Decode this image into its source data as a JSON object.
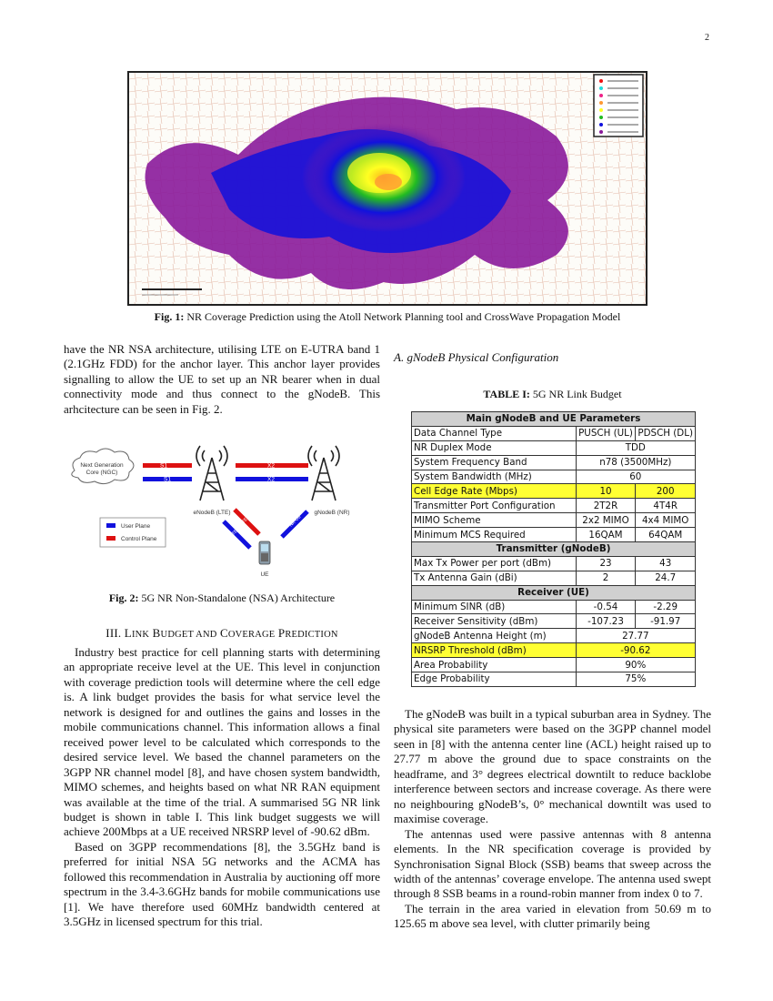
{
  "page_number": "2",
  "figure1": {
    "label": "Fig. 1:",
    "caption": "NR Coverage Prediction using the Atoll Network Planning tool and CrossWave Propagation Model",
    "legend_colors": [
      "#ee1111",
      "#22dddd",
      "#ee2288",
      "#ff9933",
      "#ffff22",
      "#22bb22",
      "#1111dd",
      "#8a1a9a"
    ]
  },
  "left_col": {
    "para1": "have the NR NSA architecture, utilising LTE on E-UTRA band 1 (2.1GHz FDD) for the anchor layer. This anchor layer provides signalling to allow the UE to set up an NR bearer when in dual connectivity mode and thus connect to the gNodeB. This arhcitecture can be seen in Fig. 2.",
    "section_num": "III.",
    "section_title_L": "L",
    "section_title_1": "INK",
    "section_title_B": "B",
    "section_title_2": "UDGET AND",
    "section_title_C": "C",
    "section_title_3": "OVERAGE",
    "section_title_P": "P",
    "section_title_4": "REDICTION",
    "para2": "Industry best practice for cell planning starts with determining an appropriate receive level at the UE. This level in conjunction with coverage prediction tools will determine where the cell edge is. A link budget provides the basis for what service level the network is designed for and outlines the gains and losses in the mobile communications channel. This information allows a final received power level to be calculated which corresponds to the desired service level. We based the channel parameters on the 3GPP NR channel model [8], and have chosen system bandwidth, MIMO schemes, and heights based on what NR RAN equipment was available at the time of the trial. A summarised 5G NR link budget is shown in table I. This link budget suggests we will achieve 200Mbps at a UE received NRSRP level of -90.62 dBm.",
    "para3": "Based on 3GPP recommendations [8], the 3.5GHz band is preferred for initial NSA 5G networks and the ACMA has followed this recommendation in Australia by auctioning off more spectrum in the 3.4-3.6GHz bands for mobile communications use [1]. We have therefore used 60MHz bandwidth centered at 3.5GHz in licensed spectrum for this trial."
  },
  "figure2": {
    "label": "Fig. 2:",
    "caption": "5G NR Non-Standalone (NSA) Architecture",
    "core_line1": "Next Generation",
    "core_line2": "Core (NGC)",
    "s1_mme": "S1",
    "s1_mme_sub": "MME",
    "s1_u": "S1",
    "s1_u_sub": "U",
    "x2_c": "X2",
    "x2_c_sub": "C",
    "x2_u": "X2",
    "x2_u_sub": "U",
    "enodeb": "eNodeB (LTE)",
    "gnodeb": "gNodeB (NR)",
    "ue": "UE",
    "lte_uu_c": "LTE-Uu",
    "lte_uu_u": "LTE-Uu",
    "nr_uu": "NR-Uu",
    "legend_user": "User Plane",
    "legend_control": "Control Plane",
    "user_color": "#1111dd",
    "control_color": "#dd1111"
  },
  "right_col": {
    "subsection": "A. gNodeB Physical Configuration",
    "para1": "The gNodeB was built in a typical suburban area in Sydney. The physical site parameters were based on the 3GPP channel model seen in [8] with the antenna center line (ACL) height raised up to 27.77 m above the ground due to space constraints on the headframe, and 3° degrees electrical downtilt to reduce backlobe interference between sectors and increase coverage. As there were no neighbouring gNodeB’s, 0° mechanical downtilt was used to maximise coverage.",
    "para2": "The antennas used were passive antennas with 8 antenna elements. In the NR specification coverage is provided by Synchronisation Signal Block (SSB) beams that sweep across the width of the antennas’ coverage envelope. The antenna used swept through 8 SSB beams in a round-robin manner from index 0 to 7.",
    "para3": "The terrain in the area varied in elevation from 50.69 m to 125.65 m above sea level, with clutter primarily being"
  },
  "table1": {
    "label": "TABLE I:",
    "caption": "5G NR Link Budget",
    "highlight_color": "#ffff33",
    "rows": [
      {
        "type": "header",
        "label": "Main gNodeB and UE Parameters"
      },
      {
        "type": "split",
        "label": "Data Channel Type",
        "ul": "PUSCH (UL)",
        "dl": "PDSCH (DL)"
      },
      {
        "type": "merged",
        "label": "NR Duplex Mode",
        "value": "TDD"
      },
      {
        "type": "merged",
        "label": "System Frequency Band",
        "value": "n78 (3500MHz)"
      },
      {
        "type": "merged",
        "label": "System Bandwidth (MHz)",
        "value": "60"
      },
      {
        "type": "split",
        "label": "Cell Edge Rate (Mbps)",
        "ul": "10",
        "dl": "200",
        "highlight": true
      },
      {
        "type": "split",
        "label": "Transmitter Port Configuration",
        "ul": "2T2R",
        "dl": "4T4R"
      },
      {
        "type": "split",
        "label": "MIMO Scheme",
        "ul": "2x2 MIMO",
        "dl": "4x4 MIMO"
      },
      {
        "type": "split",
        "label": "Minimum MCS Required",
        "ul": "16QAM",
        "dl": "64QAM"
      },
      {
        "type": "header",
        "label": "Transmitter (gNodeB)"
      },
      {
        "type": "split",
        "label": "Max Tx Power per port (dBm)",
        "ul": "23",
        "dl": "43"
      },
      {
        "type": "split",
        "label": "Tx Antenna Gain (dBi)",
        "ul": "2",
        "dl": "24.7"
      },
      {
        "type": "header",
        "label": "Receiver (UE)"
      },
      {
        "type": "split",
        "label": "Minimum SINR (dB)",
        "ul": "-0.54",
        "dl": "-2.29"
      },
      {
        "type": "split",
        "label": "Receiver Sensitivity (dBm)",
        "ul": "-107.23",
        "dl": "-91.97"
      },
      {
        "type": "merged",
        "label": "gNodeB Antenna Height (m)",
        "value": "27.77"
      },
      {
        "type": "merged",
        "label": "NRSRP Threshold (dBm)",
        "value": "-90.62",
        "highlight": true
      },
      {
        "type": "merged",
        "label": "Area Probability",
        "value": "90%"
      },
      {
        "type": "merged",
        "label": "Edge Probability",
        "value": "75%"
      }
    ]
  }
}
